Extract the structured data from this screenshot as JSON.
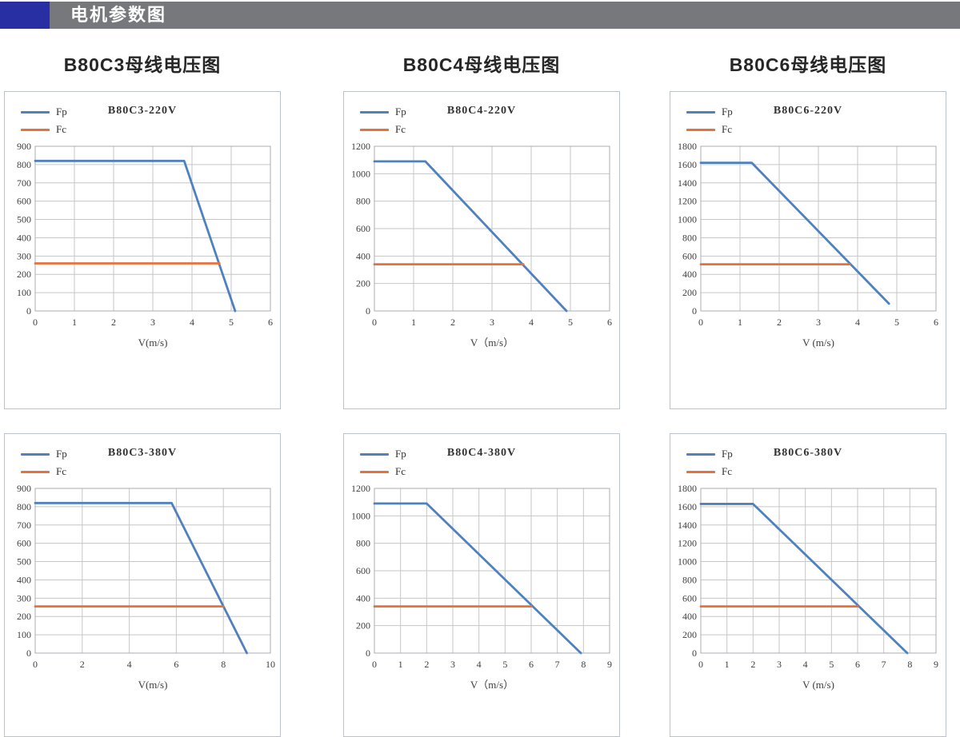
{
  "header": {
    "title": "电机参数图",
    "accent_color": "#272FA3",
    "bar_color": "#77787B"
  },
  "chart_data": [
    {
      "type": "line",
      "heading": "B80C3母线电压图",
      "title": "B80C3-220V",
      "xlabel": "V(m/s)",
      "xlim": [
        0,
        6
      ],
      "x_tick_step": 1,
      "ylim": [
        0,
        900
      ],
      "y_tick_step": 100,
      "grid": true,
      "legend_position": "top-left",
      "series": [
        {
          "name": "Fp",
          "color": "#4E81BD",
          "points": [
            [
              0,
              820
            ],
            [
              3.8,
              820
            ],
            [
              5.1,
              0
            ]
          ]
        },
        {
          "name": "Fc",
          "color": "#E8713B",
          "points": [
            [
              0,
              260
            ],
            [
              4.7,
              260
            ]
          ]
        }
      ]
    },
    {
      "type": "line",
      "heading": "B80C4母线电压图",
      "title": "B80C4-220V",
      "xlabel": "V（m/s）",
      "xlim": [
        0,
        6
      ],
      "x_tick_step": 1,
      "ylim": [
        0,
        1200
      ],
      "y_tick_step": 200,
      "grid": true,
      "legend_position": "top-left",
      "series": [
        {
          "name": "Fp",
          "color": "#4E81BD",
          "points": [
            [
              0,
              1090
            ],
            [
              1.3,
              1090
            ],
            [
              4.9,
              0
            ]
          ]
        },
        {
          "name": "Fc",
          "color": "#E8713B",
          "points": [
            [
              0,
              340
            ],
            [
              3.8,
              340
            ]
          ]
        }
      ]
    },
    {
      "type": "line",
      "heading": "B80C6母线电压图",
      "title": "B80C6-220V",
      "xlabel": "V (m/s)",
      "xlim": [
        0,
        6
      ],
      "x_tick_step": 1,
      "ylim": [
        0,
        1800
      ],
      "y_tick_step": 200,
      "grid": true,
      "legend_position": "top-left",
      "series": [
        {
          "name": "Fp",
          "color": "#4E81BD",
          "points": [
            [
              0,
              1620
            ],
            [
              1.3,
              1620
            ],
            [
              4.8,
              80
            ]
          ]
        },
        {
          "name": "Fc",
          "color": "#E8713B",
          "points": [
            [
              0,
              510
            ],
            [
              3.8,
              510
            ]
          ]
        }
      ]
    },
    {
      "type": "line",
      "heading": "",
      "title": "B80C3-380V",
      "xlabel": "V(m/s)",
      "xlim": [
        0,
        10
      ],
      "x_tick_step": 2,
      "ylim": [
        0,
        900
      ],
      "y_tick_step": 100,
      "grid": true,
      "legend_position": "top-left",
      "series": [
        {
          "name": "Fp",
          "color": "#4E81BD",
          "points": [
            [
              0,
              820
            ],
            [
              5.8,
              820
            ],
            [
              9,
              0
            ]
          ]
        },
        {
          "name": "Fc",
          "color": "#E8713B",
          "points": [
            [
              0,
              255
            ],
            [
              8,
              255
            ]
          ]
        }
      ]
    },
    {
      "type": "line",
      "heading": "",
      "title": "B80C4-380V",
      "xlabel": "V（m/s）",
      "xlim": [
        0,
        9
      ],
      "x_tick_step": 1,
      "ylim": [
        0,
        1200
      ],
      "y_tick_step": 200,
      "grid": true,
      "legend_position": "top-left",
      "series": [
        {
          "name": "Fp",
          "color": "#4E81BD",
          "points": [
            [
              0,
              1090
            ],
            [
              2,
              1090
            ],
            [
              7.9,
              0
            ]
          ]
        },
        {
          "name": "Fc",
          "color": "#E8713B",
          "points": [
            [
              0,
              340
            ],
            [
              6,
              340
            ]
          ]
        }
      ]
    },
    {
      "type": "line",
      "heading": "",
      "title": "B80C6-380V",
      "xlabel": "V (m/s)",
      "xlim": [
        0,
        9
      ],
      "x_tick_step": 1,
      "ylim": [
        0,
        1800
      ],
      "y_tick_step": 200,
      "grid": true,
      "legend_position": "top-left",
      "series": [
        {
          "name": "Fp",
          "color": "#4E81BD",
          "points": [
            [
              0,
              1630
            ],
            [
              2,
              1630
            ],
            [
              7.9,
              0
            ]
          ]
        },
        {
          "name": "Fc",
          "color": "#E8713B",
          "points": [
            [
              0,
              510
            ],
            [
              6,
              510
            ]
          ]
        }
      ]
    }
  ]
}
